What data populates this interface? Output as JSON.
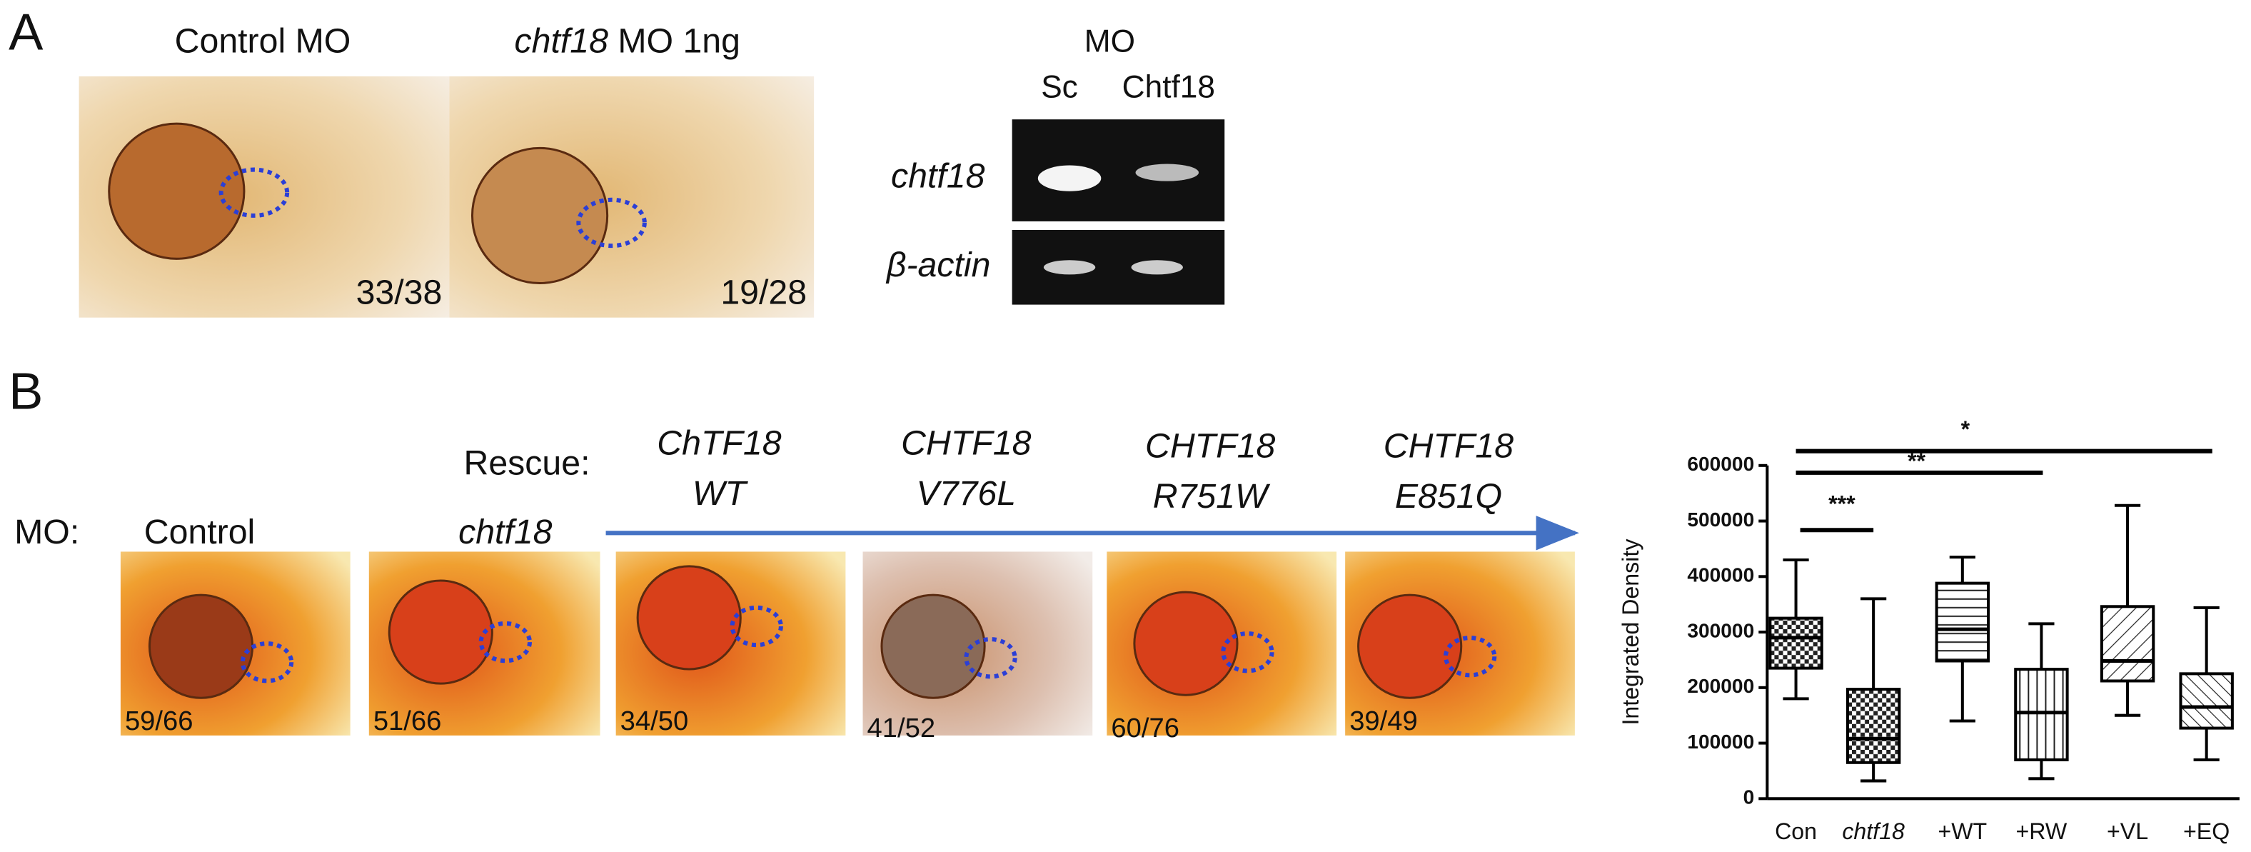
{
  "panel_a": {
    "label": "A",
    "images": [
      {
        "title": "Control MO",
        "count": "33/38"
      },
      {
        "title_italic": "chtf18",
        "title_rest": "MO 1ng",
        "count": "19/28"
      }
    ],
    "gel": {
      "title": "MO",
      "lanes": [
        "Sc",
        "Chtf18"
      ],
      "rows": [
        "chtf18",
        "β-actin"
      ]
    }
  },
  "panel_b": {
    "label": "B",
    "mo_label": "MO:",
    "rescue_label": "Rescue:",
    "groups": [
      {
        "title": [
          "Control"
        ],
        "count": "59/66"
      },
      {
        "title": [
          "chtf18"
        ],
        "count": "51/66"
      },
      {
        "title": [
          "ChTF18",
          "WT"
        ],
        "count": "34/50"
      },
      {
        "title": [
          "CHTF18",
          "V776L"
        ],
        "count": "41/52"
      },
      {
        "title": [
          "CHTF18",
          "R751W"
        ],
        "count": "60/76"
      },
      {
        "title": [
          "CHTF18",
          "E851Q"
        ],
        "count": "39/49"
      }
    ]
  },
  "chart_data": {
    "type": "box",
    "ylabel": "Integrated Density",
    "categories": [
      "Con",
      "chtf18",
      "+WT",
      "+RW",
      "+VL",
      "+EQ"
    ],
    "min": [
      180000,
      32000,
      140000,
      36000,
      150000,
      70000
    ],
    "q1": [
      235000,
      65000,
      248000,
      70000,
      212000,
      127000
    ],
    "median": [
      290000,
      108000,
      305000,
      155000,
      248000,
      165000
    ],
    "q3": [
      325000,
      197000,
      388000,
      233000,
      346000,
      225000
    ],
    "max": [
      430000,
      360000,
      435000,
      315000,
      528000,
      344000
    ],
    "ylim": [
      0,
      600000
    ],
    "yticks": [
      0,
      100000,
      200000,
      300000,
      400000,
      500000,
      600000
    ],
    "annotations": [
      {
        "label": "*"
      },
      {
        "label": "**"
      },
      {
        "label": "***"
      }
    ]
  }
}
